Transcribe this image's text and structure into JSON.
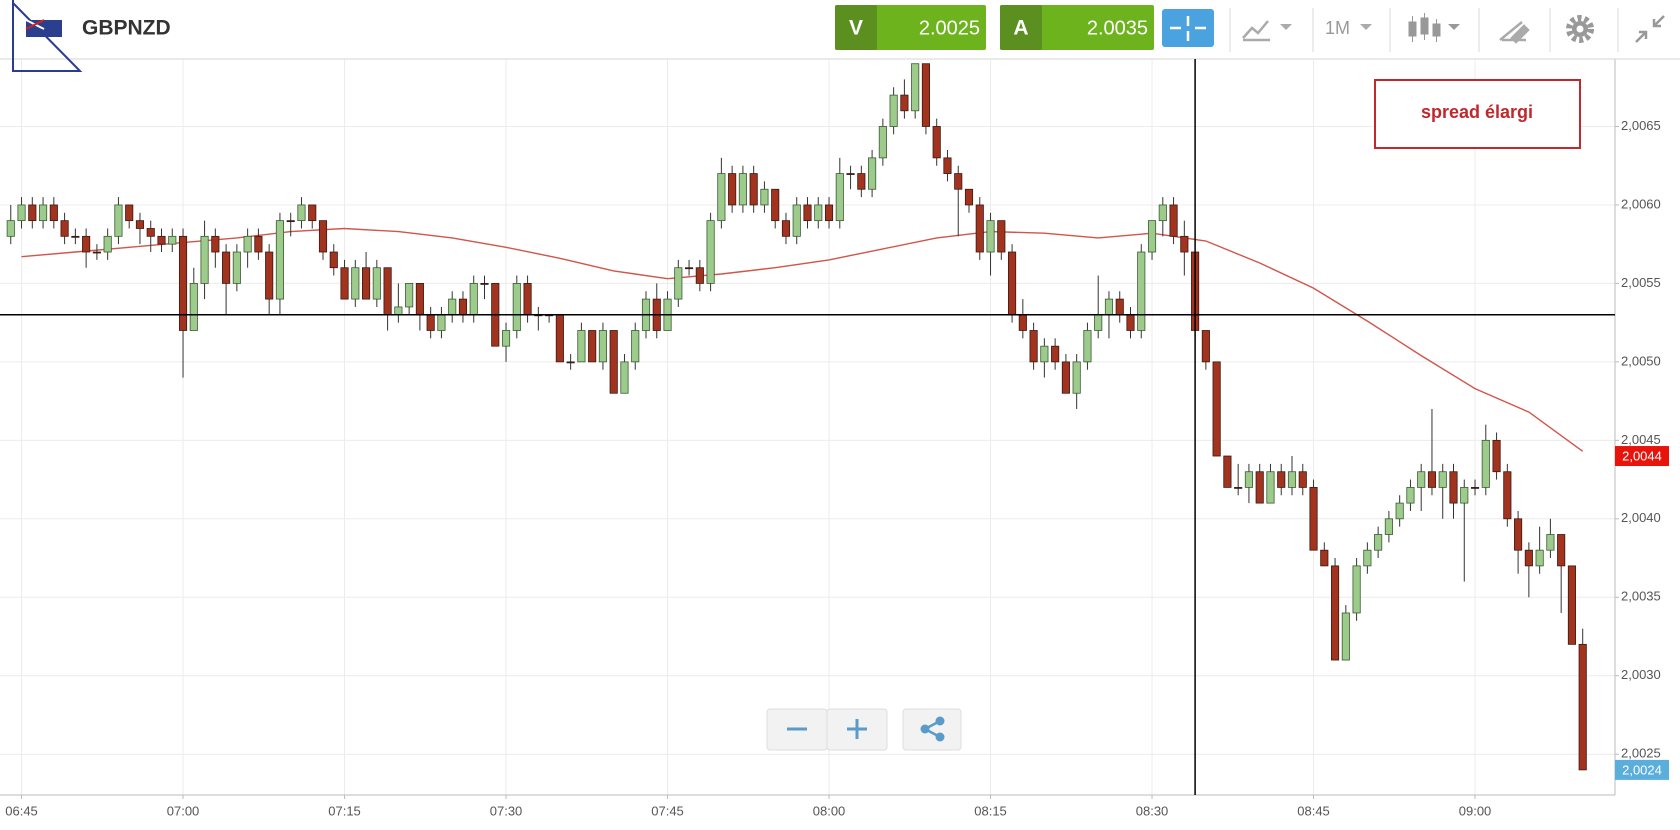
{
  "header": {
    "symbol": "GBPNZD",
    "bid_label": "V",
    "bid": 2.0025,
    "ask_label": "A",
    "ask": 2.0035,
    "timeframe": "1M"
  },
  "chart_data": {
    "type": "candlestick",
    "x": [
      "06:44",
      "06:45",
      "06:46",
      "06:47",
      "06:48",
      "06:49",
      "06:50",
      "06:51",
      "06:52",
      "06:53",
      "06:54",
      "06:55",
      "06:56",
      "06:57",
      "06:58",
      "06:59",
      "07:00",
      "07:01",
      "07:02",
      "07:03",
      "07:04",
      "07:05",
      "07:06",
      "07:07",
      "07:08",
      "07:09",
      "07:10",
      "07:11",
      "07:12",
      "07:13",
      "07:14",
      "07:15",
      "07:16",
      "07:17",
      "07:18",
      "07:19",
      "07:20",
      "07:21",
      "07:22",
      "07:23",
      "07:24",
      "07:25",
      "07:26",
      "07:27",
      "07:28",
      "07:29",
      "07:30",
      "07:31",
      "07:32",
      "07:33",
      "07:34",
      "07:35",
      "07:36",
      "07:37",
      "07:38",
      "07:39",
      "07:40",
      "07:41",
      "07:42",
      "07:43",
      "07:44",
      "07:45",
      "07:46",
      "07:47",
      "07:48",
      "07:49",
      "07:50",
      "07:51",
      "07:52",
      "07:53",
      "07:54",
      "07:55",
      "07:56",
      "07:57",
      "07:58",
      "07:59",
      "08:00",
      "08:01",
      "08:02",
      "08:03",
      "08:04",
      "08:05",
      "08:06",
      "08:07",
      "08:08",
      "08:09",
      "08:10",
      "08:11",
      "08:12",
      "08:13",
      "08:14",
      "08:15",
      "08:16",
      "08:17",
      "08:18",
      "08:19",
      "08:20",
      "08:21",
      "08:22",
      "08:23",
      "08:24",
      "08:25",
      "08:26",
      "08:27",
      "08:28",
      "08:29",
      "08:30",
      "08:31",
      "08:32",
      "08:33",
      "08:34",
      "08:35",
      "08:36",
      "08:37",
      "08:38",
      "08:39",
      "08:40",
      "08:41",
      "08:42",
      "08:43",
      "08:44",
      "08:45",
      "08:46",
      "08:47",
      "08:48",
      "08:49",
      "08:50",
      "08:51",
      "08:52",
      "08:53",
      "08:54",
      "08:55",
      "08:56",
      "08:57",
      "08:58",
      "08:59",
      "09:00",
      "09:01",
      "09:02",
      "09:03",
      "09:04",
      "09:05",
      "09:06",
      "09:07",
      "09:08",
      "09:09",
      "09:10"
    ],
    "open": [
      2.0058,
      2.0059,
      2.006,
      2.0059,
      2.006,
      2.0059,
      2.0058,
      2.0058,
      2.0057,
      2.0057,
      2.0058,
      2.006,
      2.0059,
      2.00585,
      2.0058,
      2.00575,
      2.0058,
      2.0052,
      2.0055,
      2.0058,
      2.0057,
      2.0055,
      2.0057,
      2.0058,
      2.0057,
      2.0054,
      2.0059,
      2.0059,
      2.006,
      2.0059,
      2.0057,
      2.0056,
      2.0054,
      2.0056,
      2.0054,
      2.0056,
      2.0053,
      2.00535,
      2.0055,
      2.0053,
      2.0052,
      2.0053,
      2.0054,
      2.0053,
      2.0055,
      2.0055,
      2.0051,
      2.0052,
      2.0055,
      2.0053,
      2.0053,
      2.0053,
      2.005,
      2.005,
      2.0052,
      2.005,
      2.0052,
      2.0048,
      2.005,
      2.0052,
      2.0054,
      2.0052,
      2.0054,
      2.0056,
      2.0056,
      2.0055,
      2.0059,
      2.0062,
      2.006,
      2.0062,
      2.006,
      2.0061,
      2.0059,
      2.0058,
      2.006,
      2.0059,
      2.006,
      2.0059,
      2.0062,
      2.0062,
      2.0061,
      2.0063,
      2.0065,
      2.0067,
      2.0066,
      2.0069,
      2.0065,
      2.0063,
      2.0062,
      2.0061,
      2.006,
      2.0057,
      2.0059,
      2.0057,
      2.0053,
      2.0052,
      2.005,
      2.0051,
      2.005,
      2.0048,
      2.005,
      2.0052,
      2.0053,
      2.0054,
      2.0053,
      2.0052,
      2.0057,
      2.0059,
      2.006,
      2.0058,
      2.0057,
      2.0052,
      2.005,
      2.0044,
      2.0042,
      2.0042,
      2.0043,
      2.0041,
      2.0043,
      2.0042,
      2.0043,
      2.0042,
      2.0038,
      2.0037,
      2.0031,
      2.0034,
      2.0037,
      2.0038,
      2.0039,
      2.004,
      2.0041,
      2.0042,
      2.0043,
      2.0042,
      2.0043,
      2.0041,
      2.0042,
      2.0042,
      2.0045,
      2.0043,
      2.004,
      2.0038,
      2.0037,
      2.0038,
      2.0039,
      2.0037,
      2.0032
    ],
    "high": [
      2.006,
      2.00605,
      2.00605,
      2.00605,
      2.00605,
      2.00595,
      2.00585,
      2.00585,
      2.00575,
      2.00585,
      2.00605,
      2.006,
      2.00595,
      2.0059,
      2.00585,
      2.00585,
      2.00585,
      2.0056,
      2.0059,
      2.00585,
      2.00575,
      2.00575,
      2.00585,
      2.00585,
      2.00575,
      2.00595,
      2.00595,
      2.00605,
      2.006,
      2.0059,
      2.00575,
      2.00565,
      2.00565,
      2.0057,
      2.00565,
      2.0056,
      2.0055,
      2.0055,
      2.0055,
      2.00535,
      2.00535,
      2.00545,
      2.00545,
      2.00555,
      2.00555,
      2.0055,
      2.00525,
      2.00555,
      2.00555,
      2.00535,
      2.0053,
      2.0053,
      2.00505,
      2.00525,
      2.0052,
      2.00525,
      2.0052,
      2.00505,
      2.00525,
      2.00545,
      2.0055,
      2.00545,
      2.00565,
      2.00565,
      2.00565,
      2.00595,
      2.0063,
      2.00625,
      2.00625,
      2.00625,
      2.00615,
      2.0061,
      2.00595,
      2.00605,
      2.00605,
      2.00605,
      2.00605,
      2.0063,
      2.00625,
      2.00625,
      2.00635,
      2.00655,
      2.00675,
      2.0068,
      2.0069,
      2.0069,
      2.00655,
      2.00635,
      2.00625,
      2.0061,
      2.00605,
      2.00595,
      2.0059,
      2.00575,
      2.0054,
      2.00525,
      2.00515,
      2.00515,
      2.00505,
      2.00505,
      2.00525,
      2.00555,
      2.00545,
      2.00545,
      2.00535,
      2.00575,
      2.0059,
      2.00605,
      2.00605,
      2.0059,
      2.0057,
      2.0052,
      2.005,
      2.0044,
      2.00435,
      2.00435,
      2.00435,
      2.00435,
      2.00435,
      2.0044,
      2.00435,
      2.00425,
      2.00385,
      2.00375,
      2.00345,
      2.00375,
      2.00385,
      2.00395,
      2.00405,
      2.00415,
      2.00425,
      2.00435,
      2.0047,
      2.00435,
      2.00435,
      2.00425,
      2.00425,
      2.0046,
      2.00455,
      2.00435,
      2.00405,
      2.00385,
      2.00395,
      2.004,
      2.0039,
      2.0037,
      2.0033
    ],
    "low": [
      2.00575,
      2.00585,
      2.00585,
      2.00585,
      2.00585,
      2.00575,
      2.00575,
      2.0056,
      2.00565,
      2.00565,
      2.00575,
      2.00585,
      2.00575,
      2.0057,
      2.0057,
      2.0057,
      2.0049,
      2.0052,
      2.0054,
      2.0056,
      2.0053,
      2.00545,
      2.0056,
      2.00565,
      2.0053,
      2.0053,
      2.0058,
      2.00585,
      2.00585,
      2.00565,
      2.00555,
      2.0054,
      2.00535,
      2.0054,
      2.00535,
      2.0052,
      2.00525,
      2.0053,
      2.0052,
      2.00515,
      2.00515,
      2.00525,
      2.00525,
      2.00525,
      2.0054,
      2.0051,
      2.005,
      2.00515,
      2.00525,
      2.0052,
      2.00525,
      2.005,
      2.00495,
      2.005,
      2.005,
      2.00495,
      2.0048,
      2.0048,
      2.00495,
      2.00515,
      2.00515,
      2.0052,
      2.00535,
      2.00555,
      2.00545,
      2.00545,
      2.00585,
      2.00595,
      2.00595,
      2.00595,
      2.00595,
      2.00585,
      2.00575,
      2.00575,
      2.00585,
      2.00585,
      2.00585,
      2.00585,
      2.0061,
      2.00605,
      2.00605,
      2.00625,
      2.00645,
      2.00655,
      2.00655,
      2.00645,
      2.00625,
      2.00615,
      2.0058,
      2.00595,
      2.00565,
      2.00555,
      2.00565,
      2.00525,
      2.00515,
      2.00495,
      2.0049,
      2.00495,
      2.0048,
      2.0047,
      2.00495,
      2.00515,
      2.00515,
      2.00525,
      2.00515,
      2.00515,
      2.00565,
      2.0058,
      2.00575,
      2.00555,
      2.00515,
      2.00495,
      2.0044,
      2.0042,
      2.00415,
      2.0041,
      2.0041,
      2.0041,
      2.00415,
      2.00415,
      2.00415,
      2.0038,
      2.0037,
      2.0031,
      2.0031,
      2.00335,
      2.00365,
      2.00375,
      2.00385,
      2.00395,
      2.00405,
      2.00405,
      2.00415,
      2.004,
      2.004,
      2.0036,
      2.00415,
      2.00415,
      2.00425,
      2.00395,
      2.00365,
      2.0035,
      2.00365,
      2.00375,
      2.0034,
      2.0032,
      2.0024
    ],
    "close": [
      2.0059,
      2.006,
      2.0059,
      2.006,
      2.0059,
      2.0058,
      2.0058,
      2.0057,
      2.0057,
      2.0058,
      2.006,
      2.0059,
      2.00585,
      2.0058,
      2.00575,
      2.0058,
      2.0052,
      2.0055,
      2.0058,
      2.0057,
      2.0055,
      2.0057,
      2.0058,
      2.0057,
      2.0054,
      2.0059,
      2.0059,
      2.006,
      2.0059,
      2.0057,
      2.0056,
      2.0054,
      2.0056,
      2.0054,
      2.0056,
      2.0053,
      2.00535,
      2.0055,
      2.0053,
      2.0052,
      2.0053,
      2.0054,
      2.0053,
      2.0055,
      2.0055,
      2.0051,
      2.0052,
      2.0055,
      2.0053,
      2.0053,
      2.0053,
      2.005,
      2.005,
      2.0052,
      2.005,
      2.0052,
      2.0048,
      2.005,
      2.0052,
      2.0054,
      2.0052,
      2.0054,
      2.0056,
      2.0056,
      2.0055,
      2.0059,
      2.0062,
      2.006,
      2.0062,
      2.006,
      2.0061,
      2.0059,
      2.0058,
      2.006,
      2.0059,
      2.006,
      2.0059,
      2.0062,
      2.0062,
      2.0061,
      2.0063,
      2.0065,
      2.0067,
      2.0066,
      2.0069,
      2.0065,
      2.0063,
      2.0062,
      2.0061,
      2.006,
      2.0057,
      2.0059,
      2.0057,
      2.0053,
      2.0052,
      2.005,
      2.0051,
      2.005,
      2.0048,
      2.005,
      2.0052,
      2.0053,
      2.0054,
      2.0053,
      2.0052,
      2.0057,
      2.0059,
      2.006,
      2.0058,
      2.0057,
      2.0052,
      2.005,
      2.0044,
      2.0042,
      2.0042,
      2.0043,
      2.0041,
      2.0043,
      2.0042,
      2.0043,
      2.0042,
      2.0038,
      2.0037,
      2.0031,
      2.0034,
      2.0037,
      2.0038,
      2.0039,
      2.004,
      2.0041,
      2.0042,
      2.0043,
      2.0042,
      2.0043,
      2.0041,
      2.0042,
      2.0042,
      2.0045,
      2.0043,
      2.004,
      2.0038,
      2.0037,
      2.0038,
      2.0039,
      2.0037,
      2.0032,
      2.0024
    ],
    "up_color": "#9ccb8c",
    "down_color": "#a1331f",
    "moving_average": {
      "color": "#d0554a",
      "x": [
        "06:45",
        "06:50",
        "06:55",
        "07:00",
        "07:05",
        "07:10",
        "07:15",
        "07:20",
        "07:25",
        "07:30",
        "07:35",
        "07:40",
        "07:45",
        "07:50",
        "07:55",
        "08:00",
        "08:05",
        "08:10",
        "08:15",
        "08:20",
        "08:25",
        "08:30",
        "08:35",
        "08:40",
        "08:45",
        "08:50",
        "08:55",
        "09:00",
        "09:05",
        "09:10"
      ],
      "values": [
        2.00567,
        2.0057,
        2.00573,
        2.00576,
        2.00579,
        2.00583,
        2.00585,
        2.00583,
        2.00579,
        2.00573,
        2.00566,
        2.00558,
        2.00553,
        2.00556,
        2.0056,
        2.00565,
        2.00572,
        2.00579,
        2.00583,
        2.00582,
        2.00579,
        2.00582,
        2.00577,
        2.00563,
        2.00547,
        2.00526,
        2.00504,
        2.00483,
        2.00468,
        2.00443
      ]
    },
    "xlim": [
      "06:43",
      "09:13"
    ],
    "xticks": [
      "06:45",
      "07:00",
      "07:15",
      "07:30",
      "07:45",
      "08:00",
      "08:15",
      "08:30",
      "08:45",
      "09:00"
    ],
    "ylim": [
      2.00224,
      2.00693
    ],
    "yticks": [
      {
        "value": 2.0025,
        "label": "2,0025"
      },
      {
        "value": 2.003,
        "label": "2,0030"
      },
      {
        "value": 2.0035,
        "label": "2,0035"
      },
      {
        "value": 2.004,
        "label": "2,0040"
      },
      {
        "value": 2.0045,
        "label": "2,0045"
      },
      {
        "value": 2.005,
        "label": "2,0050"
      },
      {
        "value": 2.0055,
        "label": "2,0055"
      },
      {
        "value": 2.006,
        "label": "2,0060"
      },
      {
        "value": 2.0065,
        "label": "2,0065"
      }
    ],
    "grid": true,
    "crosshair": {
      "x": "08:34",
      "y": 2.0053
    },
    "price_tags": [
      {
        "value": 2.0044,
        "label": "2,0044",
        "color": "#e8140c"
      },
      {
        "value": 2.0024,
        "label": "2,0024",
        "color": "#5aaedc"
      }
    ],
    "annotation": "spread élargi"
  }
}
